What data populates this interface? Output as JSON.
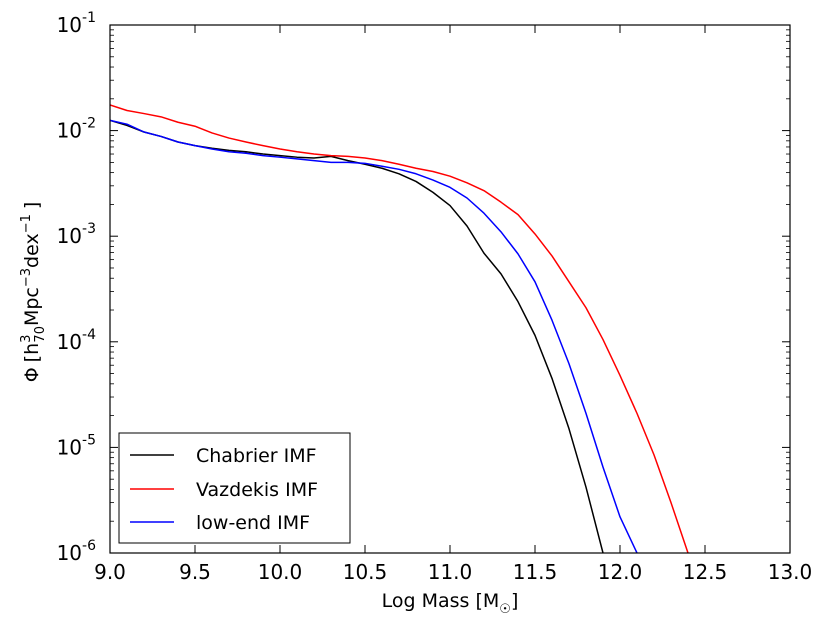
{
  "chart_data": {
    "type": "line",
    "title": "",
    "xlabel": "Log Mass [M",
    "xlabel_sub": "☉",
    "xlabel_close": "]",
    "ylabel": {
      "phi": "Φ",
      "open": "[h",
      "sup_h": "3",
      "sub_h": "70",
      "mpc": "Mpc",
      "sup_mpc": "−3",
      "dex": "dex",
      "sup_dex": "−1",
      "close": "]"
    },
    "xlim": [
      9.0,
      13.0
    ],
    "ylim_log10": [
      -6,
      -1
    ],
    "x_ticks": [
      "9.0",
      "9.5",
      "10.0",
      "10.5",
      "11.0",
      "11.5",
      "12.0",
      "12.5",
      "13.0"
    ],
    "y_ticks": [
      {
        "base": "10",
        "exp": "-1"
      },
      {
        "base": "10",
        "exp": "-2"
      },
      {
        "base": "10",
        "exp": "-3"
      },
      {
        "base": "10",
        "exp": "-4"
      },
      {
        "base": "10",
        "exp": "-5"
      },
      {
        "base": "10",
        "exp": "-6"
      }
    ],
    "legend_position": "lower-left",
    "series": [
      {
        "name": "Chabrier IMF",
        "color": "#000000",
        "x": [
          9.0,
          9.1,
          9.2,
          9.3,
          9.4,
          9.5,
          9.6,
          9.7,
          9.8,
          9.9,
          10.0,
          10.1,
          10.2,
          10.3,
          10.4,
          10.5,
          10.6,
          10.7,
          10.8,
          10.9,
          11.0,
          11.1,
          11.2,
          11.3,
          11.4,
          11.5,
          11.6,
          11.7,
          11.8,
          11.9
        ],
        "y": [
          0.0125,
          0.0112,
          0.0097,
          0.0088,
          0.0078,
          0.0072,
          0.0068,
          0.0065,
          0.0063,
          0.006,
          0.0058,
          0.0056,
          0.0055,
          0.0057,
          0.0052,
          0.0048,
          0.0044,
          0.0039,
          0.0033,
          0.0026,
          0.00195,
          0.00125,
          0.00069,
          0.00044,
          0.00024,
          0.000115,
          4.5e-05,
          1.5e-05,
          4.2e-06,
          1e-06
        ]
      },
      {
        "name": "Vazdekis IMF",
        "color": "#ff0000",
        "x": [
          9.0,
          9.1,
          9.2,
          9.3,
          9.4,
          9.5,
          9.6,
          9.7,
          9.8,
          9.9,
          10.0,
          10.1,
          10.2,
          10.3,
          10.4,
          10.5,
          10.6,
          10.7,
          10.8,
          10.9,
          11.0,
          11.1,
          11.2,
          11.3,
          11.4,
          11.5,
          11.6,
          11.7,
          11.8,
          11.9,
          12.0,
          12.1,
          12.2,
          12.3,
          12.4
        ],
        "y": [
          0.0175,
          0.0155,
          0.0145,
          0.0135,
          0.012,
          0.011,
          0.0095,
          0.0085,
          0.0078,
          0.0072,
          0.0067,
          0.0063,
          0.006,
          0.0058,
          0.0057,
          0.0055,
          0.0052,
          0.0048,
          0.0044,
          0.0041,
          0.0037,
          0.0032,
          0.0027,
          0.0021,
          0.0016,
          0.00105,
          0.00065,
          0.00037,
          0.00021,
          0.000105,
          4.8e-05,
          2.1e-05,
          8.5e-06,
          3e-06,
          1e-06
        ]
      },
      {
        "name": "low-end IMF",
        "color": "#0000ff",
        "x": [
          9.0,
          9.1,
          9.2,
          9.3,
          9.4,
          9.5,
          9.6,
          9.7,
          9.8,
          9.9,
          10.0,
          10.1,
          10.2,
          10.3,
          10.4,
          10.5,
          10.6,
          10.7,
          10.8,
          10.9,
          11.0,
          11.1,
          11.2,
          11.3,
          11.4,
          11.5,
          11.6,
          11.7,
          11.8,
          11.9,
          12.0,
          12.1
        ],
        "y": [
          0.0125,
          0.0115,
          0.0097,
          0.0088,
          0.0078,
          0.0072,
          0.0067,
          0.0063,
          0.0061,
          0.0058,
          0.0056,
          0.0054,
          0.0052,
          0.005,
          0.005,
          0.0049,
          0.0046,
          0.0043,
          0.0039,
          0.0034,
          0.0029,
          0.0023,
          0.00165,
          0.0011,
          0.00068,
          0.00037,
          0.00016,
          6.2e-05,
          2.1e-05,
          6.5e-06,
          2.2e-06,
          1e-06
        ]
      }
    ]
  }
}
